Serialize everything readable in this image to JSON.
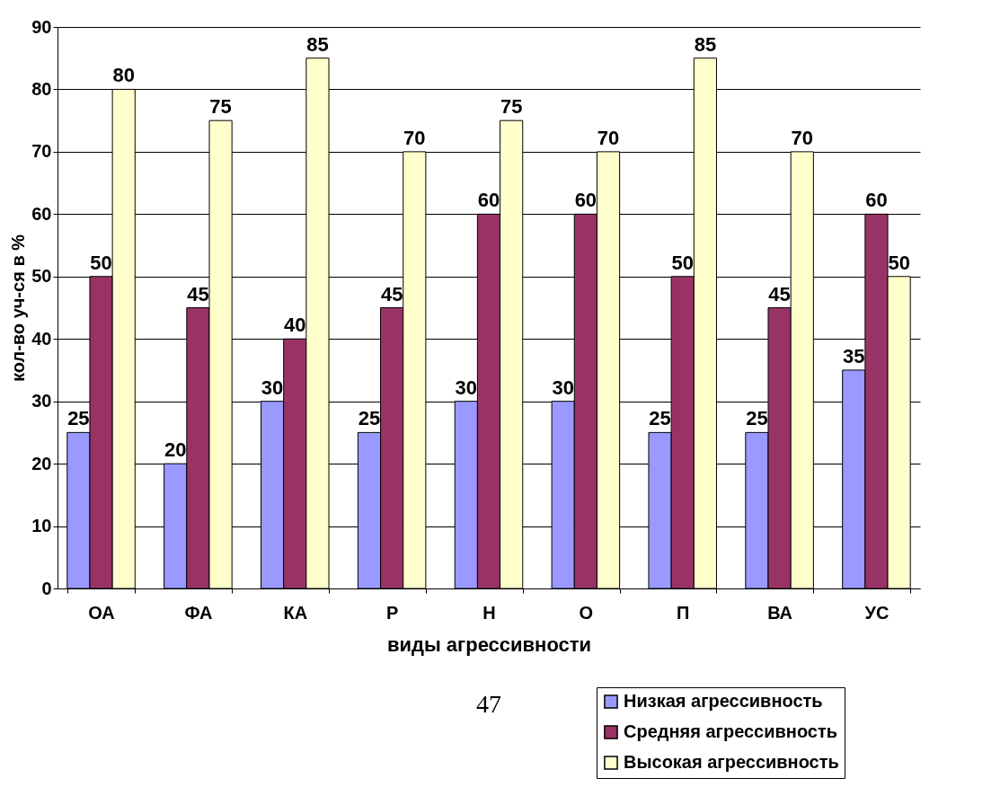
{
  "chart_data": {
    "type": "bar",
    "xlabel": "виды агрессивности",
    "ylabel": "кол-во уч-ся в %",
    "categories": [
      "ОА",
      "ФА",
      "КА",
      "Р",
      "Н",
      "О",
      "П",
      "ВА",
      "УС"
    ],
    "series": [
      {
        "name": "Низкая агрессивность",
        "color": "#9999ff",
        "values": [
          25,
          20,
          30,
          25,
          30,
          30,
          25,
          25,
          35
        ]
      },
      {
        "name": "Средняя агрессивность",
        "color": "#993366",
        "values": [
          50,
          45,
          40,
          45,
          60,
          60,
          50,
          45,
          60
        ]
      },
      {
        "name": "Высокая агрессивность",
        "color": "#ffffcc",
        "values": [
          80,
          75,
          85,
          70,
          75,
          70,
          85,
          70,
          50
        ]
      }
    ],
    "ylim": [
      0,
      90
    ],
    "yticks": [
      0,
      10,
      20,
      30,
      40,
      50,
      60,
      70,
      80,
      90
    ],
    "grid": "y",
    "legend": "bottom right",
    "data_labels": true,
    "annotations": [
      "47"
    ]
  }
}
